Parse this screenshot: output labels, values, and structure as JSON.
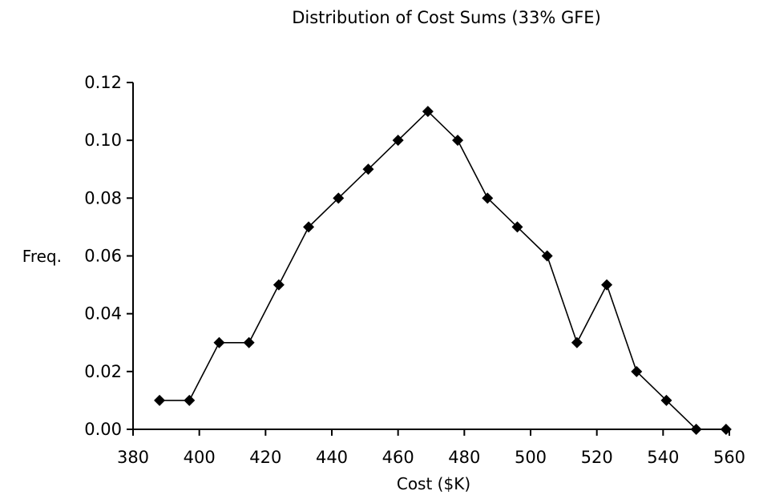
{
  "chart_data": {
    "type": "line",
    "title": "Distribution of Cost Sums (33% GFE)",
    "xlabel": "Cost ($K)",
    "ylabel": "Freq.",
    "xlim": [
      380,
      560
    ],
    "ylim": [
      0.0,
      0.12
    ],
    "x_ticks": [
      "380",
      "400",
      "420",
      "440",
      "460",
      "480",
      "500",
      "520",
      "540",
      "560"
    ],
    "y_ticks": [
      "0.00",
      "0.02",
      "0.04",
      "0.06",
      "0.08",
      "0.10",
      "0.12"
    ],
    "grid": false,
    "legend": "none",
    "marker": "diamond",
    "line_color": "#000000",
    "series": [
      {
        "x": [
          388,
          397,
          406,
          415,
          424,
          433,
          442,
          451,
          460,
          469,
          478,
          487,
          496,
          505,
          514,
          523,
          532,
          541,
          550,
          559
        ],
        "values": [
          0.01,
          0.01,
          0.03,
          0.03,
          0.05,
          0.07,
          0.08,
          0.09,
          0.1,
          0.11,
          0.1,
          0.08,
          0.07,
          0.06,
          0.03,
          0.05,
          0.02,
          0.01,
          0.0,
          0.0
        ]
      }
    ]
  }
}
